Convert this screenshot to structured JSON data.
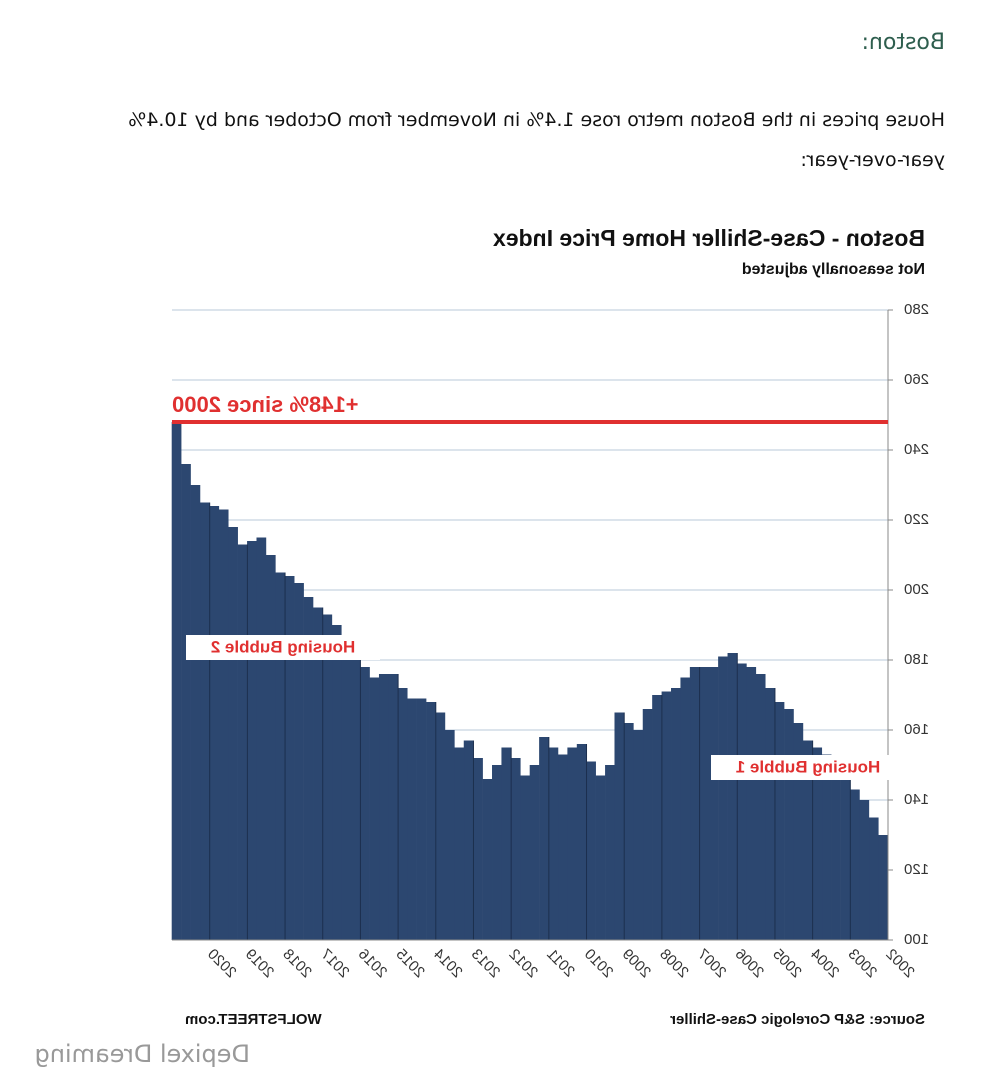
{
  "heading": "Boston:",
  "paragraph": "House prices in the Boston metro rose 1.4% in November from October and by 10.4% year-over-year:",
  "watermark": "Depixel Dreaming",
  "chart_data": {
    "type": "bar",
    "title": "Boston - Case-Shiller Home Price Index",
    "subtitle": "Not seasonally adjusted",
    "source": "Source: S&P Corelogic Case-Shiller",
    "credit": "WOLFSTREET.com",
    "color": "#2c4770",
    "grid": true,
    "ylim": [
      100,
      280
    ],
    "yticks": [
      100,
      120,
      140,
      160,
      180,
      200,
      220,
      240,
      260,
      280
    ],
    "categories": [
      "2002",
      null,
      null,
      null,
      "2003",
      null,
      null,
      null,
      "2004",
      null,
      null,
      null,
      "2005",
      null,
      null,
      null,
      "2006",
      null,
      null,
      null,
      "2007",
      null,
      null,
      null,
      "2008",
      null,
      null,
      null,
      "2009",
      null,
      null,
      null,
      "2010",
      null,
      null,
      null,
      "2011",
      null,
      null,
      null,
      "2012",
      null,
      null,
      null,
      "2013",
      null,
      null,
      null,
      "2014",
      null,
      null,
      null,
      "2015",
      null,
      null,
      null,
      "2016",
      null,
      null,
      null,
      "2017",
      null,
      null,
      null,
      "2018",
      null,
      null,
      null,
      "2019",
      null,
      null,
      null,
      "2020",
      null,
      null,
      null
    ],
    "values": [
      130,
      135,
      140,
      143,
      146,
      150,
      153,
      155,
      157,
      162,
      166,
      168,
      172,
      176,
      178,
      179,
      182,
      181,
      178,
      178,
      178,
      175,
      172,
      171,
      170,
      166,
      160,
      162,
      165,
      150,
      147,
      151,
      156,
      155,
      153,
      155,
      158,
      150,
      147,
      152,
      155,
      150,
      146,
      152,
      157,
      155,
      160,
      165,
      168,
      169,
      169,
      172,
      176,
      176,
      175,
      178,
      182,
      185,
      190,
      193,
      195,
      198,
      202,
      204,
      205,
      210,
      215,
      214,
      213,
      218,
      223,
      224,
      225,
      230,
      236,
      248
    ],
    "reference_line": {
      "value": 248,
      "label": "+148% since 2000",
      "color": "#e03030"
    },
    "annotations": [
      "Housing Bubble 1",
      "Housing Bubble 2"
    ]
  }
}
